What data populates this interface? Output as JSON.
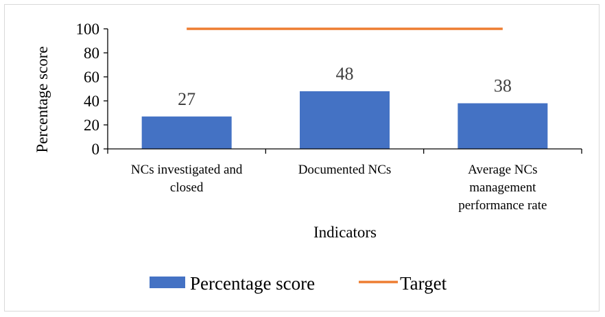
{
  "chart_data": {
    "type": "bar",
    "categories": [
      [
        "NCs investigated and",
        "closed"
      ],
      [
        "Documented NCs"
      ],
      [
        "Average NCs",
        "management",
        "performance rate"
      ]
    ],
    "series": [
      {
        "name": "Percentage score",
        "type": "bar",
        "values": [
          27,
          48,
          38
        ],
        "color": "#4472C4"
      },
      {
        "name": "Target",
        "type": "line",
        "values": [
          100,
          100,
          100
        ],
        "color": "#ED7D31"
      }
    ],
    "xlabel": "Indicators",
    "ylabel": "Percentage score",
    "ylim": [
      0,
      100
    ],
    "yticks": [
      0,
      20,
      40,
      60,
      80,
      100
    ],
    "grid": false,
    "legend": "bottom"
  }
}
